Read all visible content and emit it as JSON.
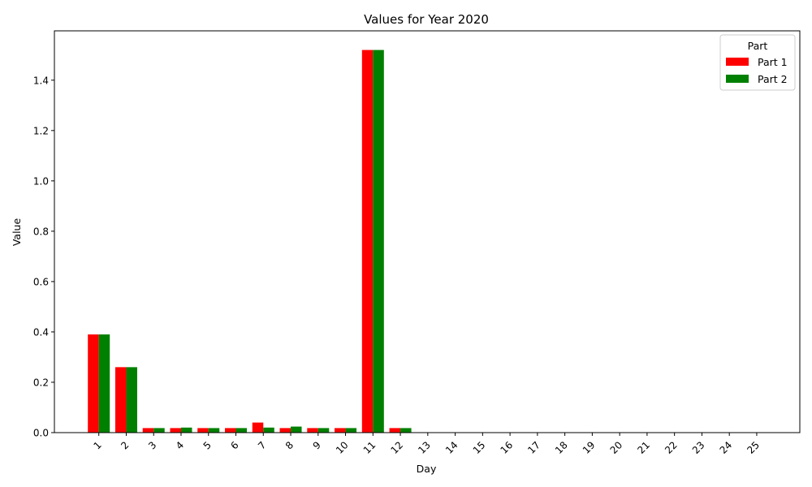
{
  "chart_data": {
    "type": "bar",
    "title": "Values for Year 2020",
    "xlabel": "Day",
    "ylabel": "Value",
    "categories": [
      "1",
      "2",
      "3",
      "4",
      "5",
      "6",
      "7",
      "8",
      "9",
      "10",
      "11",
      "12",
      "13",
      "14",
      "15",
      "16",
      "17",
      "18",
      "19",
      "20",
      "21",
      "22",
      "23",
      "24",
      "25"
    ],
    "series": [
      {
        "name": "Part 1",
        "color": "#ff0000",
        "values": [
          0.39,
          0.26,
          0.018,
          0.018,
          0.018,
          0.018,
          0.04,
          0.018,
          0.018,
          0.018,
          1.52,
          0.018,
          0,
          0,
          0,
          0,
          0,
          0,
          0,
          0,
          0,
          0,
          0,
          0,
          0
        ]
      },
      {
        "name": "Part 2",
        "color": "#008000",
        "values": [
          0.39,
          0.26,
          0.018,
          0.02,
          0.018,
          0.018,
          0.02,
          0.024,
          0.018,
          0.018,
          1.52,
          0.018,
          0,
          0,
          0,
          0,
          0,
          0,
          0,
          0,
          0,
          0,
          0,
          0,
          0
        ]
      }
    ],
    "yticks": [
      "0.0",
      "0.2",
      "0.4",
      "0.6",
      "0.8",
      "1.0",
      "1.2",
      "1.4"
    ],
    "ylim": [
      0,
      1.596
    ],
    "legend_title": "Part",
    "legend_position": "top-right",
    "grid": false
  }
}
